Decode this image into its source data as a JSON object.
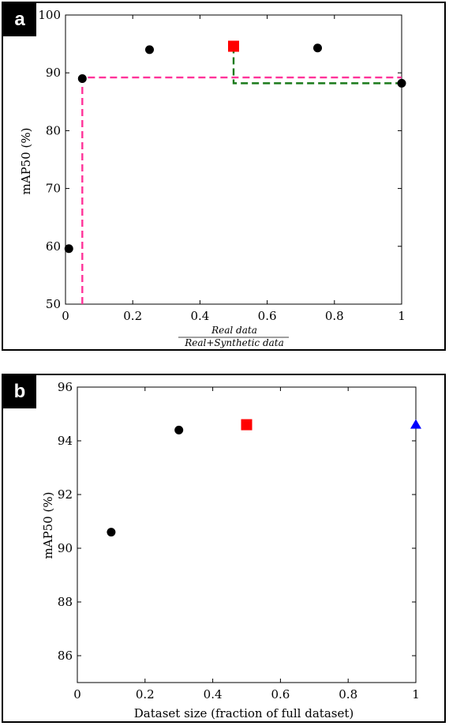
{
  "chart_data": [
    {
      "panel_label": "a",
      "type": "scatter",
      "xlabel": "",
      "xlabel_fraction": {
        "numerator": "Real data",
        "denominator": "Real+Synthetic data"
      },
      "ylabel": "mAP50 (%)",
      "xlim": [
        0,
        1
      ],
      "ylim": [
        50,
        100
      ],
      "x_ticks": [
        "0",
        "0.2",
        "0.4",
        "0.6",
        "0.8",
        "1"
      ],
      "y_ticks": [
        "50",
        "60",
        "70",
        "80",
        "90",
        "100"
      ],
      "grid": false,
      "points": [
        {
          "x": 0.01,
          "y": 59.6,
          "marker": "circle",
          "color": "#000000"
        },
        {
          "x": 0.05,
          "y": 89.0,
          "marker": "circle",
          "color": "#000000"
        },
        {
          "x": 0.25,
          "y": 94.0,
          "marker": "circle",
          "color": "#000000"
        },
        {
          "x": 0.5,
          "y": 94.6,
          "marker": "square",
          "color": "#ff0000"
        },
        {
          "x": 0.75,
          "y": 94.3,
          "marker": "circle",
          "color": "#000000"
        },
        {
          "x": 1.0,
          "y": 88.2,
          "marker": "circle",
          "color": "#000000"
        }
      ],
      "reference_lines": [
        {
          "color": "#ff3399",
          "style": "dashed",
          "points": [
            [
              0.05,
              50
            ],
            [
              0.05,
              89.2
            ],
            [
              1.0,
              89.2
            ]
          ]
        },
        {
          "color": "#1a7a1a",
          "style": "dashed",
          "points": [
            [
              0.5,
              94.6
            ],
            [
              0.5,
              88.2
            ],
            [
              1.0,
              88.2
            ]
          ]
        }
      ]
    },
    {
      "panel_label": "b",
      "type": "scatter",
      "xlabel": "Dataset size (fraction of full dataset)",
      "ylabel": "mAP50 (%)",
      "xlim": [
        0,
        1
      ],
      "ylim": [
        85,
        96
      ],
      "x_ticks": [
        "0",
        "0.2",
        "0.4",
        "0.6",
        "0.8",
        "1"
      ],
      "y_ticks": [
        "86",
        "88",
        "90",
        "92",
        "94",
        "96"
      ],
      "grid": false,
      "points": [
        {
          "x": 0.1,
          "y": 90.6,
          "marker": "circle",
          "color": "#000000"
        },
        {
          "x": 0.3,
          "y": 94.4,
          "marker": "circle",
          "color": "#000000"
        },
        {
          "x": 0.5,
          "y": 94.6,
          "marker": "square",
          "color": "#ff0000"
        },
        {
          "x": 1.0,
          "y": 94.6,
          "marker": "triangle",
          "color": "#0000ff"
        }
      ],
      "reference_lines": []
    }
  ]
}
